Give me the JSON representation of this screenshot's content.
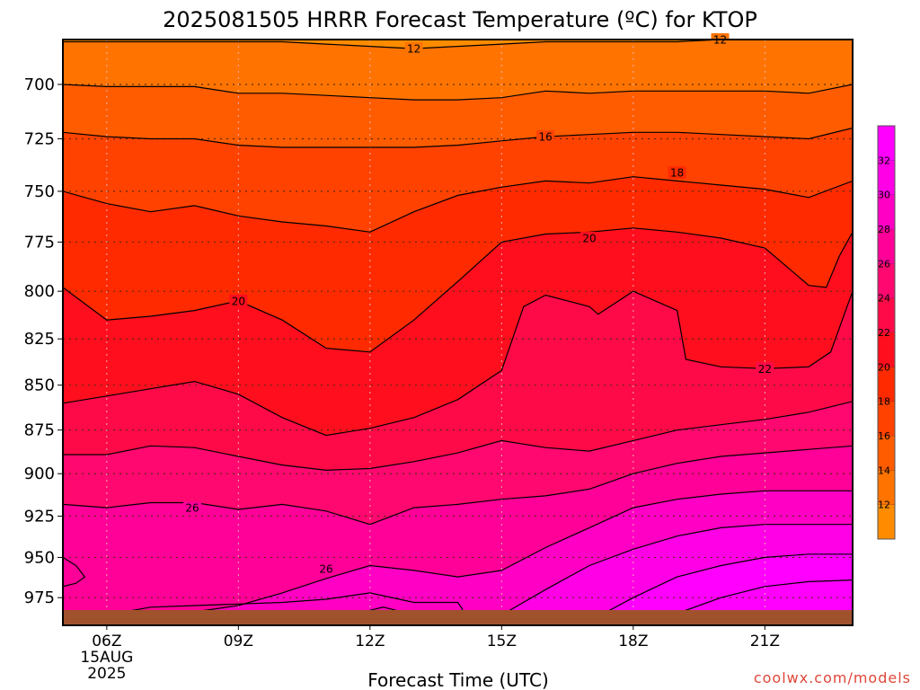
{
  "chart_data": {
    "type": "heatmap",
    "title": "2025081505 HRRR Forecast Temperature (ºC) for KTOP",
    "xlabel": "Forecast Time (UTC)",
    "ylabel": "",
    "credit": "coolwx.com/models",
    "x_ticks": [
      "06Z",
      "09Z",
      "12Z",
      "15Z",
      "18Z",
      "21Z"
    ],
    "x_hours": [
      6,
      9,
      12,
      15,
      18,
      21
    ],
    "x_date_label": [
      "15AUG",
      "2025"
    ],
    "xlim": [
      5,
      23
    ],
    "y_ticks": [
      700,
      725,
      750,
      775,
      800,
      825,
      850,
      875,
      900,
      925,
      950,
      975
    ],
    "ylim": [
      680,
      992
    ],
    "y_scale": "log",
    "grid": true,
    "colorbar": {
      "levels": [
        10,
        12,
        14,
        16,
        18,
        20,
        22,
        24,
        26,
        28,
        30,
        32,
        34
      ],
      "tick_labels": [
        12,
        14,
        16,
        18,
        20,
        22,
        24,
        26,
        28,
        30,
        32
      ],
      "colors": [
        "#ff8c00",
        "#ff7400",
        "#ff5c00",
        "#ff4200",
        "#ff2a00",
        "#ff0e1e",
        "#ff0a48",
        "#ff0870",
        "#ff0098",
        "#ff00c4",
        "#ff00e6",
        "#ff00ff"
      ]
    },
    "contour_labels": [
      {
        "text": "12",
        "hour": 13.0,
        "pressure": 684
      },
      {
        "text": "12",
        "hour": 19.98,
        "pressure": 680
      },
      {
        "text": "16",
        "hour": 16.0,
        "pressure": 724
      },
      {
        "text": "18",
        "hour": 19.0,
        "pressure": 741
      },
      {
        "text": "20",
        "hour": 17.0,
        "pressure": 773
      },
      {
        "text": "20",
        "hour": 9.0,
        "pressure": 805
      },
      {
        "text": "22",
        "hour": 21.0,
        "pressure": 841
      },
      {
        "text": "26",
        "hour": 7.95,
        "pressure": 920
      },
      {
        "text": "26",
        "hour": 11.0,
        "pressure": 957
      }
    ],
    "contours": [
      {
        "level": 12,
        "hour": [
          5,
          6,
          7,
          8,
          9,
          10,
          11,
          12,
          13,
          14,
          15,
          16,
          17,
          18,
          19,
          20,
          21,
          22,
          23
        ],
        "pressure": [
          681,
          681,
          681,
          681,
          681,
          681,
          682,
          683,
          684,
          683,
          682,
          681,
          681,
          681,
          681,
          680,
          680,
          680,
          680
        ]
      },
      {
        "level": 14,
        "hour": [
          5,
          6,
          7,
          8,
          9,
          10,
          11,
          12,
          13,
          14,
          15,
          16,
          17,
          18,
          19,
          20,
          21,
          22,
          23
        ],
        "pressure": [
          700,
          701,
          701,
          701,
          704,
          704,
          705,
          706,
          707,
          707,
          706,
          703,
          704,
          703,
          703,
          703,
          703,
          704,
          700
        ]
      },
      {
        "level": 16,
        "hour": [
          5,
          6,
          7,
          8,
          9,
          10,
          11,
          12,
          13,
          14,
          15,
          16,
          17,
          18,
          19,
          20,
          21,
          22,
          23
        ],
        "pressure": [
          722,
          724,
          725,
          725,
          728,
          729,
          729,
          729,
          729,
          728,
          726,
          724,
          723,
          722,
          722,
          723,
          724,
          725,
          720
        ]
      },
      {
        "level": 18,
        "hour": [
          5,
          6,
          7,
          8,
          9,
          10,
          11,
          12,
          13,
          14,
          15,
          16,
          17,
          18,
          19,
          20,
          21,
          22,
          23
        ],
        "pressure": [
          750,
          756,
          760,
          757,
          762,
          765,
          767,
          770,
          760,
          752,
          748,
          745,
          746,
          743,
          745,
          747,
          749,
          753,
          745
        ]
      },
      {
        "level": 20,
        "hour": [
          5,
          6,
          7,
          8,
          9,
          10,
          11,
          12,
          13,
          14,
          15,
          16,
          17,
          18,
          19,
          20,
          21,
          22,
          22.4,
          22.7,
          23
        ],
        "pressure": [
          798,
          815,
          813,
          810,
          805,
          815,
          830,
          832,
          815,
          795,
          775,
          771,
          770,
          768,
          770,
          773,
          778,
          797,
          798,
          782,
          770
        ]
      },
      {
        "level": 22,
        "hour": [
          5,
          6,
          7,
          8,
          9,
          10,
          11,
          12,
          13,
          14,
          15,
          15.5,
          16,
          17,
          17.2,
          18,
          19,
          19.2,
          20,
          21,
          22,
          22.5,
          23
        ],
        "pressure": [
          860,
          856,
          852,
          848,
          855,
          868,
          878,
          874,
          868,
          858,
          842,
          808,
          802,
          808,
          812,
          800,
          810,
          836,
          840,
          841,
          840,
          832,
          800
        ]
      },
      {
        "level": 24,
        "hour": [
          5,
          6,
          7,
          8,
          9,
          10,
          11,
          12,
          13,
          14,
          15,
          16,
          17,
          18,
          19,
          20,
          21,
          22,
          23
        ],
        "pressure": [
          889,
          889,
          884,
          885,
          890,
          895,
          898,
          897,
          893,
          888,
          881,
          885,
          887,
          881,
          875,
          872,
          869,
          865,
          859
        ]
      },
      {
        "level": 26,
        "hour": [
          5,
          6,
          7,
          8,
          9,
          10,
          11,
          12,
          13,
          14,
          15,
          16,
          17,
          18,
          19,
          20,
          21,
          22,
          23
        ],
        "pressure": [
          918,
          920,
          917,
          917,
          921,
          918,
          922,
          930,
          920,
          918,
          915,
          913,
          909,
          900,
          894,
          890,
          888,
          886,
          884
        ]
      },
      {
        "level": 28,
        "hour": [
          5,
          6,
          7,
          8,
          9,
          10,
          11,
          12,
          13,
          14,
          15,
          16,
          17,
          18,
          19,
          20,
          21,
          22,
          23
        ],
        "pressure": [
          992,
          990,
          986,
          984,
          980,
          972,
          963,
          955,
          958,
          962,
          958,
          944,
          932,
          920,
          915,
          912,
          910,
          910,
          910
        ]
      },
      {
        "level": 30,
        "hour": [
          14.6,
          15,
          16,
          17,
          18,
          19,
          20,
          21,
          22,
          23
        ],
        "pressure": [
          992,
          986,
          970,
          955,
          945,
          937,
          932,
          930,
          930,
          930
        ]
      },
      {
        "level": 32,
        "hour": [
          16.8,
          17,
          18,
          19,
          20,
          21,
          22,
          23
        ],
        "pressure": [
          992,
          990,
          975,
          962,
          955,
          950,
          948,
          948
        ]
      },
      {
        "level": 34,
        "hour": [
          18.2,
          19,
          20,
          21,
          22,
          23
        ],
        "pressure": [
          992,
          985,
          975,
          968,
          965,
          964
        ]
      }
    ],
    "surface_contours": [
      {
        "hour": [
          5,
          5.3,
          5.5,
          5.3,
          5
        ],
        "pressure": [
          950,
          955,
          962,
          966,
          968
        ]
      },
      {
        "hour": [
          5,
          6,
          7,
          8,
          9,
          10,
          11,
          12,
          13,
          14,
          14.1,
          14.2
        ],
        "pressure": [
          988,
          986,
          981,
          980,
          979,
          978,
          976,
          972,
          978,
          978,
          982,
          992
        ]
      },
      {
        "hour": [
          12,
          12.3,
          12.6
        ],
        "pressure": [
          983,
          981,
          983
        ]
      }
    ]
  }
}
